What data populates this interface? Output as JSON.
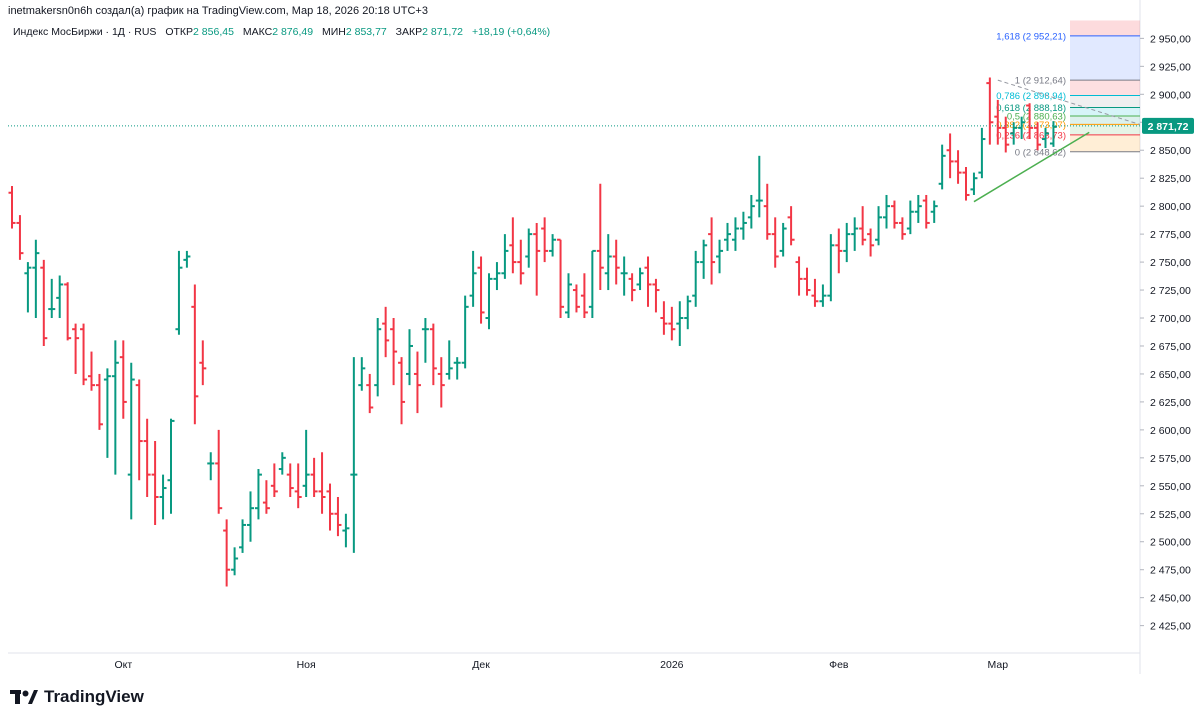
{
  "header": {
    "credit": "inetmakersn0n6h создал(а) график на TradingView.com, Мар 18, 2026 20:18 UTC+3"
  },
  "legend": {
    "symbol": "Индекс МосБиржи · 1Д · RUS",
    "open_label": "ОТКР",
    "open": "2 856,45",
    "high_label": "МАКС",
    "high": "2 876,49",
    "low_label": "МИН",
    "low": "2 853,77",
    "close_label": "ЗАКР",
    "close": "2 871,72",
    "change": "+18,19 (+0,64%)"
  },
  "brand": {
    "name": "TradingView"
  },
  "colors": {
    "up": "#089981",
    "down": "#f23645",
    "last_price_bg": "#089981",
    "trend": "#4caf50"
  },
  "chart_data": {
    "type": "ohlc",
    "last_price": "2 871,72",
    "ylim": [
      2405,
      2970
    ],
    "y_ticks": [
      {
        "v": 2950,
        "label": "2 950,00"
      },
      {
        "v": 2925,
        "label": "2 925,00"
      },
      {
        "v": 2900,
        "label": "2 900,00"
      },
      {
        "v": 2875,
        "label": "2 875,00"
      },
      {
        "v": 2850,
        "label": "2 850,00"
      },
      {
        "v": 2825,
        "label": "2 825,00"
      },
      {
        "v": 2800,
        "label": "2 800,00"
      },
      {
        "v": 2775,
        "label": "2 775,00"
      },
      {
        "v": 2750,
        "label": "2 750,00"
      },
      {
        "v": 2725,
        "label": "2 725,00"
      },
      {
        "v": 2700,
        "label": "2 700,00"
      },
      {
        "v": 2675,
        "label": "2 675,00"
      },
      {
        "v": 2650,
        "label": "2 650,00"
      },
      {
        "v": 2625,
        "label": "2 625,00"
      },
      {
        "v": 2600,
        "label": "2 600,00"
      },
      {
        "v": 2575,
        "label": "2 575,00"
      },
      {
        "v": 2550,
        "label": "2 550,00"
      },
      {
        "v": 2525,
        "label": "2 525,00"
      },
      {
        "v": 2500,
        "label": "2 500,00"
      },
      {
        "v": 2475,
        "label": "2 475,00"
      },
      {
        "v": 2450,
        "label": "2 450,00"
      },
      {
        "v": 2425,
        "label": "2 425,00"
      }
    ],
    "x_ticks": [
      {
        "bar": 14,
        "label": "Окт"
      },
      {
        "bar": 37,
        "label": "Ноя"
      },
      {
        "bar": 59,
        "label": "Дек"
      },
      {
        "bar": 83,
        "label": "2026"
      },
      {
        "bar": 104,
        "label": "Фев"
      },
      {
        "bar": 124,
        "label": "Мар"
      }
    ],
    "fibonacci": [
      {
        "level": "1,618",
        "price": 2952.21,
        "label": "1,618 (2 952,21)",
        "color": "#2962ff"
      },
      {
        "level": "1",
        "price": 2912.64,
        "label": "1 (2 912,64)",
        "color": "#787b86"
      },
      {
        "level": "0,786",
        "price": 2898.94,
        "label": "0,786 (2 898,94)",
        "color": "#00bcd4"
      },
      {
        "level": "0,618",
        "price": 2888.18,
        "label": "0,618 (2 888,18)",
        "color": "#089981"
      },
      {
        "level": "0,5",
        "price": 2880.63,
        "label": "0,5 (2 880,63)",
        "color": "#4caf50"
      },
      {
        "level": "0,382",
        "price": 2873.07,
        "label": "0,382 (2 873,07)",
        "color": "#ff9800"
      },
      {
        "level": "0,236",
        "price": 2863.73,
        "label": "0,236 (2 863,73)",
        "color": "#f23645"
      },
      {
        "level": "0",
        "price": 2848.62,
        "label": "0 (2 848,62)",
        "color": "#787b86"
      }
    ],
    "bars": [
      [
        2812,
        2818,
        2780,
        2785
      ],
      [
        2785,
        2792,
        2752,
        2758
      ],
      [
        2740,
        2750,
        2705,
        2745
      ],
      [
        2745,
        2770,
        2700,
        2758
      ],
      [
        2745,
        2752,
        2675,
        2682
      ],
      [
        2708,
        2735,
        2700,
        2708
      ],
      [
        2718,
        2738,
        2700,
        2730
      ],
      [
        2730,
        2732,
        2680,
        2682
      ],
      [
        2690,
        2695,
        2650,
        2682
      ],
      [
        2690,
        2695,
        2640,
        2645
      ],
      [
        2648,
        2670,
        2635,
        2640
      ],
      [
        2640,
        2650,
        2600,
        2605
      ],
      [
        2645,
        2655,
        2575,
        2648
      ],
      [
        2648,
        2680,
        2560,
        2660
      ],
      [
        2665,
        2680,
        2610,
        2625
      ],
      [
        2560,
        2660,
        2520,
        2645
      ],
      [
        2640,
        2645,
        2555,
        2590
      ],
      [
        2590,
        2610,
        2540,
        2560
      ],
      [
        2560,
        2590,
        2515,
        2540
      ],
      [
        2540,
        2560,
        2520,
        2548
      ],
      [
        2555,
        2610,
        2525,
        2608
      ],
      [
        2690,
        2760,
        2685,
        2745
      ],
      [
        2752,
        2760,
        2745,
        2755
      ],
      [
        2710,
        2730,
        2605,
        2630
      ],
      [
        2660,
        2680,
        2640,
        2655
      ],
      [
        2570,
        2580,
        2555,
        2570
      ],
      [
        2570,
        2600,
        2525,
        2530
      ],
      [
        2510,
        2520,
        2460,
        2475
      ],
      [
        2475,
        2495,
        2470,
        2485
      ],
      [
        2495,
        2520,
        2490,
        2515
      ],
      [
        2515,
        2545,
        2500,
        2530
      ],
      [
        2530,
        2565,
        2520,
        2560
      ],
      [
        2535,
        2555,
        2525,
        2530
      ],
      [
        2550,
        2570,
        2540,
        2545
      ],
      [
        2565,
        2580,
        2560,
        2575
      ],
      [
        2560,
        2570,
        2540,
        2548
      ],
      [
        2545,
        2570,
        2530,
        2540
      ],
      [
        2550,
        2600,
        2540,
        2560
      ],
      [
        2560,
        2575,
        2540,
        2545
      ],
      [
        2545,
        2580,
        2525,
        2540
      ],
      [
        2545,
        2552,
        2510,
        2525
      ],
      [
        2525,
        2540,
        2505,
        2515
      ],
      [
        2510,
        2525,
        2495,
        2512
      ],
      [
        2560,
        2665,
        2490,
        2560
      ],
      [
        2640,
        2665,
        2635,
        2655
      ],
      [
        2640,
        2650,
        2615,
        2620
      ],
      [
        2640,
        2700,
        2630,
        2690
      ],
      [
        2695,
        2710,
        2665,
        2680
      ],
      [
        2690,
        2700,
        2640,
        2670
      ],
      [
        2660,
        2665,
        2605,
        2625
      ],
      [
        2650,
        2690,
        2640,
        2675
      ],
      [
        2650,
        2670,
        2615,
        2640
      ],
      [
        2690,
        2700,
        2660,
        2690
      ],
      [
        2690,
        2695,
        2640,
        2655
      ],
      [
        2650,
        2665,
        2620,
        2640
      ],
      [
        2650,
        2680,
        2645,
        2655
      ],
      [
        2660,
        2665,
        2645,
        2660
      ],
      [
        2660,
        2720,
        2655,
        2710
      ],
      [
        2720,
        2760,
        2710,
        2740
      ],
      [
        2745,
        2755,
        2695,
        2705
      ],
      [
        2700,
        2740,
        2690,
        2735
      ],
      [
        2735,
        2750,
        2725,
        2740
      ],
      [
        2740,
        2775,
        2735,
        2760
      ],
      [
        2765,
        2790,
        2740,
        2750
      ],
      [
        2750,
        2770,
        2730,
        2740
      ],
      [
        2755,
        2780,
        2745,
        2775
      ],
      [
        2775,
        2785,
        2720,
        2760
      ],
      [
        2780,
        2790,
        2750,
        2760
      ],
      [
        2760,
        2775,
        2755,
        2770
      ],
      [
        2770,
        2770,
        2700,
        2710
      ],
      [
        2705,
        2740,
        2700,
        2730
      ],
      [
        2725,
        2730,
        2705,
        2710
      ],
      [
        2720,
        2740,
        2700,
        2705
      ],
      [
        2710,
        2760,
        2700,
        2760
      ],
      [
        2760,
        2820,
        2725,
        2745
      ],
      [
        2740,
        2775,
        2725,
        2755
      ],
      [
        2755,
        2770,
        2730,
        2745
      ],
      [
        2740,
        2755,
        2720,
        2740
      ],
      [
        2735,
        2740,
        2715,
        2725
      ],
      [
        2730,
        2745,
        2725,
        2740
      ],
      [
        2745,
        2755,
        2710,
        2730
      ],
      [
        2730,
        2735,
        2705,
        2725
      ],
      [
        2700,
        2715,
        2685,
        2695
      ],
      [
        2695,
        2710,
        2680,
        2690
      ],
      [
        2695,
        2715,
        2675,
        2700
      ],
      [
        2700,
        2720,
        2690,
        2715
      ],
      [
        2720,
        2760,
        2710,
        2750
      ],
      [
        2750,
        2770,
        2735,
        2765
      ],
      [
        2775,
        2790,
        2730,
        2750
      ],
      [
        2755,
        2770,
        2740,
        2760
      ],
      [
        2770,
        2785,
        2760,
        2775
      ],
      [
        2770,
        2790,
        2760,
        2780
      ],
      [
        2780,
        2795,
        2770,
        2785
      ],
      [
        2790,
        2810,
        2780,
        2800
      ],
      [
        2805,
        2845,
        2790,
        2805
      ],
      [
        2800,
        2820,
        2770,
        2775
      ],
      [
        2775,
        2790,
        2745,
        2755
      ],
      [
        2760,
        2785,
        2755,
        2780
      ],
      [
        2790,
        2800,
        2765,
        2770
      ],
      [
        2750,
        2755,
        2720,
        2735
      ],
      [
        2735,
        2745,
        2720,
        2725
      ],
      [
        2720,
        2735,
        2710,
        2715
      ],
      [
        2715,
        2730,
        2710,
        2720
      ],
      [
        2720,
        2775,
        2715,
        2765
      ],
      [
        2765,
        2780,
        2740,
        2760
      ],
      [
        2760,
        2785,
        2750,
        2775
      ],
      [
        2775,
        2790,
        2760,
        2780
      ],
      [
        2780,
        2800,
        2765,
        2770
      ],
      [
        2775,
        2780,
        2755,
        2765
      ],
      [
        2770,
        2800,
        2765,
        2790
      ],
      [
        2790,
        2810,
        2780,
        2800
      ],
      [
        2800,
        2805,
        2780,
        2785
      ],
      [
        2785,
        2790,
        2770,
        2775
      ],
      [
        2780,
        2805,
        2775,
        2795
      ],
      [
        2795,
        2810,
        2785,
        2800
      ],
      [
        2805,
        2810,
        2780,
        2785
      ],
      [
        2795,
        2805,
        2785,
        2800
      ],
      [
        2820,
        2855,
        2815,
        2845
      ],
      [
        2850,
        2865,
        2825,
        2840
      ],
      [
        2840,
        2850,
        2820,
        2830
      ],
      [
        2830,
        2835,
        2805,
        2810
      ],
      [
        2815,
        2830,
        2810,
        2825
      ],
      [
        2830,
        2870,
        2825,
        2860
      ],
      [
        2910,
        2915,
        2855,
        2875
      ],
      [
        2880,
        2895,
        2855,
        2870
      ],
      [
        2870,
        2880,
        2848,
        2855
      ],
      [
        2865,
        2875,
        2855,
        2870
      ],
      [
        2870,
        2880,
        2860,
        2875
      ],
      [
        2890,
        2892,
        2860,
        2870
      ],
      [
        2870,
        2875,
        2850,
        2855
      ],
      [
        2860,
        2870,
        2852,
        2865
      ],
      [
        2856,
        2876,
        2853,
        2871
      ]
    ]
  }
}
